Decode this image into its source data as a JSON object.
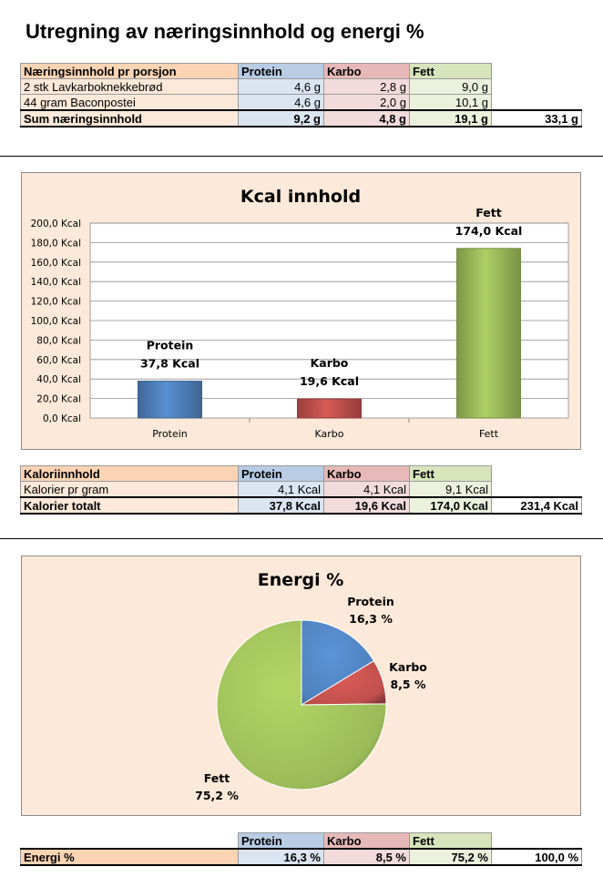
{
  "title": "Utregning av næringsinnhold og energi %",
  "table1": {
    "headers": [
      "Næringsinnhold pr porsjon",
      "Protein",
      "Karbo",
      "Fett"
    ],
    "rows": [
      {
        "label": "2 stk Lavkarboknekkebrød",
        "protein": "4,6 g",
        "karbo": "2,8 g",
        "fett": "9,0 g"
      },
      {
        "label": "44 gram Baconpostei",
        "protein": "4,6 g",
        "karbo": "2,0 g",
        "fett": "10,1 g"
      }
    ],
    "sum": {
      "label": "Sum næringsinnhold",
      "protein": "9,2 g",
      "karbo": "4,8 g",
      "fett": "19,1 g",
      "total": "33,1 g"
    }
  },
  "chart_data": [
    {
      "type": "bar",
      "title": "Kcal innhold",
      "categories": [
        "Protein",
        "Karbo",
        "Fett"
      ],
      "values": [
        37.8,
        19.6,
        174.0
      ],
      "value_labels": [
        "37,8 Kcal",
        "19,6 Kcal",
        "174,0 Kcal"
      ],
      "ylim": [
        0,
        200
      ],
      "yticks": [
        "0,0 Kcal",
        "20,0 Kcal",
        "40,0 Kcal",
        "60,0 Kcal",
        "80,0 Kcal",
        "100,0 Kcal",
        "120,0 Kcal",
        "140,0 Kcal",
        "160,0 Kcal",
        "180,0 Kcal",
        "200,0 Kcal"
      ],
      "colors": [
        "#4f81bd",
        "#c0504d",
        "#9bbb59"
      ],
      "grid": true,
      "legend": "none"
    },
    {
      "type": "pie",
      "title": "Energi %",
      "categories": [
        "Protein",
        "Karbo",
        "Fett"
      ],
      "values": [
        16.3,
        8.5,
        75.2
      ],
      "value_labels": [
        "16,3 %",
        "8,5 %",
        "75,2 %"
      ],
      "colors": [
        "#4f81bd",
        "#c0504d",
        "#9bbb59"
      ],
      "legend": "none"
    }
  ],
  "table2": {
    "headers": [
      "Kaloriinnhold",
      "Protein",
      "Karbo",
      "Fett"
    ],
    "row": {
      "label": "Kalorier pr gram",
      "protein": "4,1 Kcal",
      "karbo": "4,1 Kcal",
      "fett": "9,1 Kcal"
    },
    "sum": {
      "label": "Kalorier totalt",
      "protein": "37,8 Kcal",
      "karbo": "19,6 Kcal",
      "fett": "174,0 Kcal",
      "total": "231,4 Kcal"
    }
  },
  "table3": {
    "headers": [
      "Protein",
      "Karbo",
      "Fett"
    ],
    "row": {
      "label": "Energi %",
      "protein": "16,3 %",
      "karbo": "8,5 %",
      "fett": "75,2 %",
      "total": "100,0 %"
    }
  }
}
